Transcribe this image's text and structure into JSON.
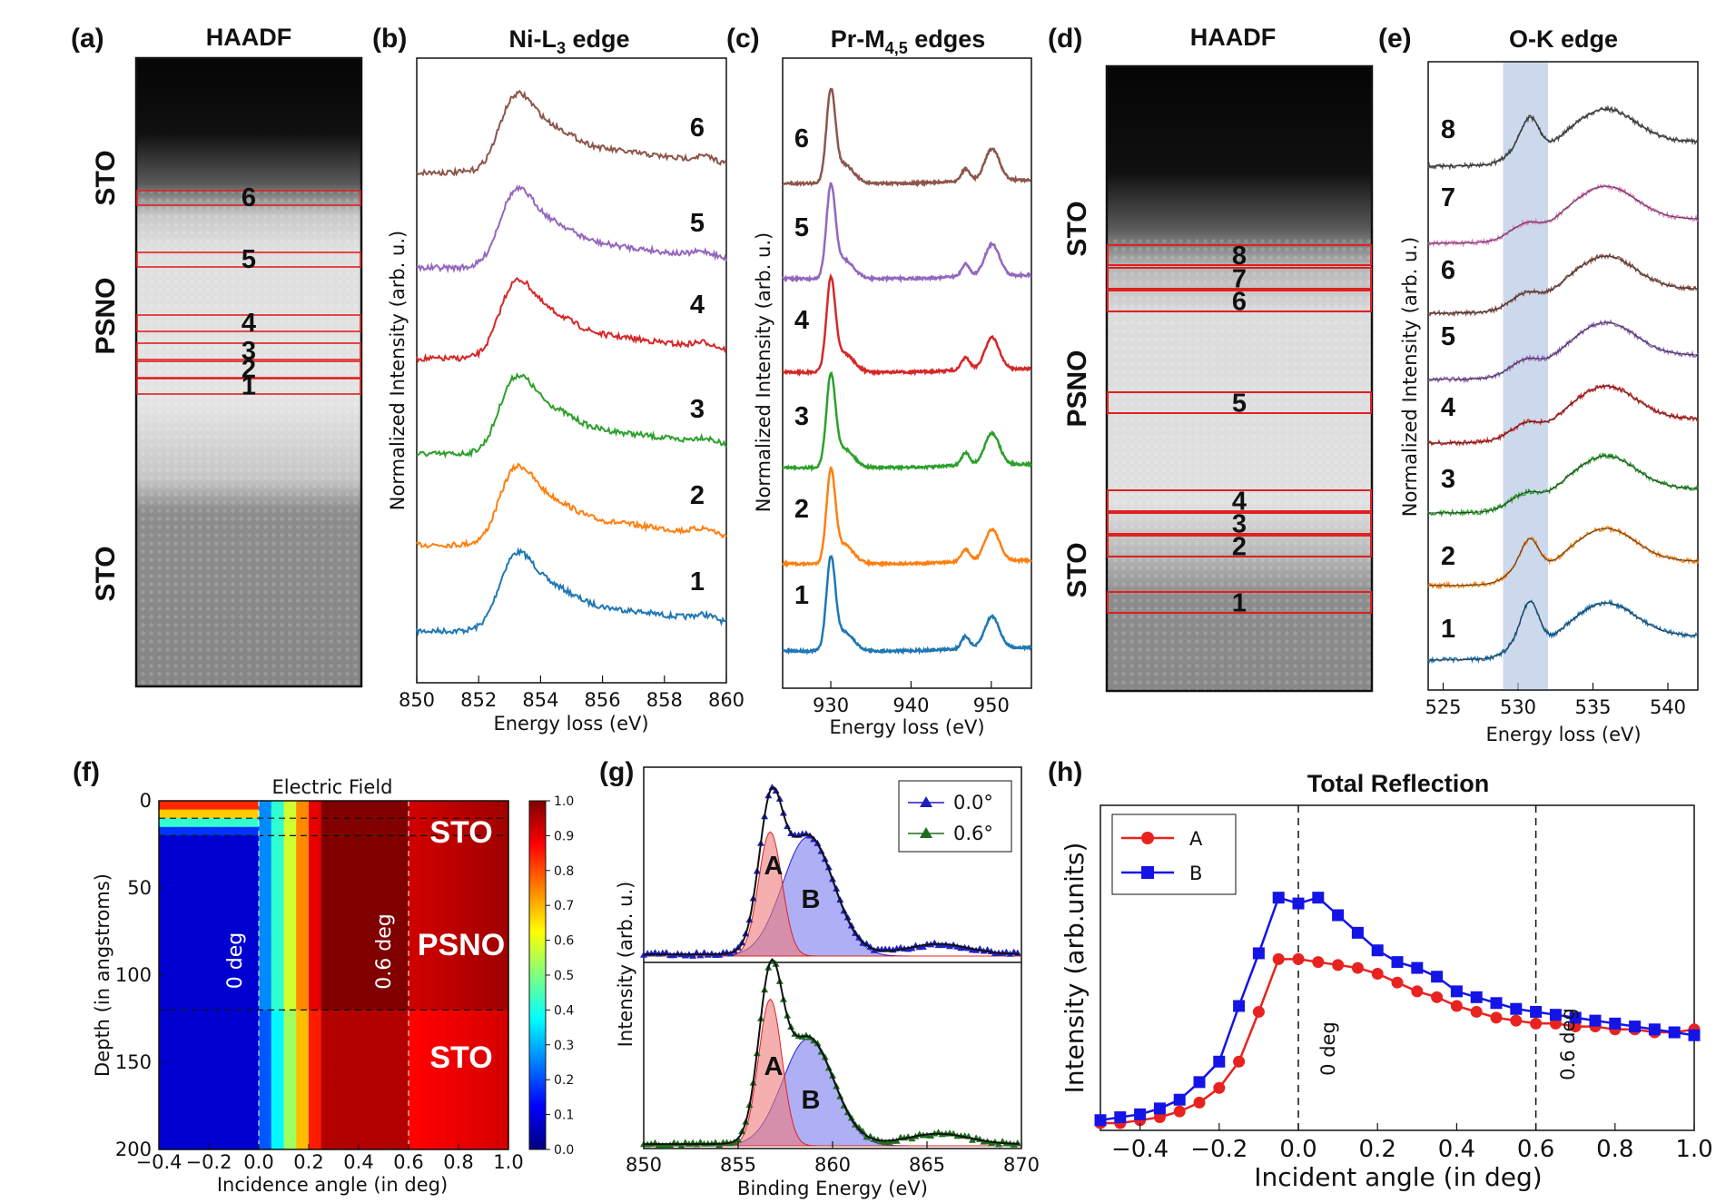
{
  "panels": {
    "a": {
      "label": "(a)",
      "title": "HAADF",
      "layers": [
        "STO",
        "PSNO",
        "STO"
      ],
      "boxes": [
        "6",
        "5",
        "4",
        "3",
        "2",
        "1"
      ]
    },
    "b": {
      "label": "(b)",
      "title": "Ni-L",
      "title_sub": "3",
      "title_tail": " edge",
      "ylabel": "Normalized Intensity (arb. u.)",
      "xlabel": "Energy loss (eV)"
    },
    "c": {
      "label": "(c)",
      "title": "Pr-M",
      "title_sub": "4,5",
      "title_tail": " edges",
      "ylabel": "Normalized Intensity (arb. u.)",
      "xlabel": "Energy loss (eV)"
    },
    "d": {
      "label": "(d)",
      "title": "HAADF",
      "layers": [
        "STO",
        "PSNO",
        "STO"
      ],
      "boxes": [
        "8",
        "7",
        "6",
        "5",
        "4",
        "3",
        "2",
        "1"
      ]
    },
    "e": {
      "label": "(e)",
      "title": "O-K edge",
      "ylabel": "Normalized Intensity (arb. u.)",
      "xlabel": "Energy loss (eV)"
    },
    "f": {
      "label": "(f)",
      "title": "Electric Field",
      "xlabel": "Incidence angle (in deg)",
      "ylabel": "Depth (in angstroms)",
      "ann0": "0 deg",
      "ann06": "0.6 deg",
      "layers": [
        "STO",
        "PSNO",
        "STO"
      ]
    },
    "g": {
      "label": "(g)",
      "xlabel": "Binding Energy (eV)",
      "ylabel": "Intensity (arb. u.)",
      "peakA": "A",
      "peakB": "B",
      "peakA2": "A",
      "peakB2": "B",
      "legend": [
        "0.0°",
        "0.6°"
      ]
    },
    "h": {
      "label": "(h)",
      "title": "Total Reflection",
      "xlabel": "Incident angle (in deg)",
      "ylabel": "Intensity (arb.units)",
      "ann0": "0 deg",
      "ann06": "0.6 deg",
      "legend": [
        "A",
        "B"
      ]
    }
  },
  "colors": {
    "s1": "#1f77b4",
    "s2": "#ff7f0e",
    "s3": "#2ca02c",
    "s4": "#d62728",
    "s5": "#9467bd",
    "s6": "#8c564b",
    "s7": "#e377c2",
    "s8": "#555555",
    "box": "#e02020",
    "red": "#e8231f",
    "blue": "#1414e6"
  },
  "chart_data": [
    {
      "id": "b",
      "type": "line",
      "title": "Ni-L3 edge",
      "xlabel": "Energy loss (eV)",
      "ylabel": "Normalized Intensity (arb. u.)",
      "xlim": [
        850,
        860
      ],
      "xticks": [
        "850",
        "852",
        "854",
        "856",
        "858",
        "860"
      ],
      "peak": 853.2,
      "series": [
        {
          "name": "1"
        },
        {
          "name": "2"
        },
        {
          "name": "3"
        },
        {
          "name": "4"
        },
        {
          "name": "5"
        },
        {
          "name": "6"
        }
      ]
    },
    {
      "id": "c",
      "type": "line",
      "title": "Pr-M4,5 edges",
      "xlabel": "Energy loss (eV)",
      "ylabel": "Normalized Intensity (arb. u.)",
      "xlim": [
        924,
        955
      ],
      "xticks": [
        "930",
        "940",
        "950"
      ],
      "peaks": [
        930,
        947,
        950
      ],
      "series": [
        {
          "name": "1"
        },
        {
          "name": "2"
        },
        {
          "name": "3"
        },
        {
          "name": "4"
        },
        {
          "name": "5"
        },
        {
          "name": "6"
        }
      ]
    },
    {
      "id": "e",
      "type": "line",
      "title": "O-K edge",
      "xlabel": "Energy loss (eV)",
      "ylabel": "Normalized Intensity (arb. u.)",
      "xlim": [
        524,
        542
      ],
      "xticks": [
        "525",
        "530",
        "535",
        "540"
      ],
      "highlight": [
        529,
        532
      ],
      "series": [
        {
          "name": "1"
        },
        {
          "name": "2"
        },
        {
          "name": "3"
        },
        {
          "name": "4"
        },
        {
          "name": "5"
        },
        {
          "name": "6"
        },
        {
          "name": "7"
        },
        {
          "name": "8"
        }
      ]
    },
    {
      "id": "f",
      "type": "heatmap",
      "title": "Electric Field",
      "xlabel": "Incidence angle (in deg)",
      "ylabel": "Depth (in angstroms)",
      "xlim": [
        -0.4,
        1.0
      ],
      "ylim": [
        0,
        200
      ],
      "xticks": [
        "−0.4",
        "−0.2",
        "0.0",
        "0.2",
        "0.4",
        "0.6",
        "0.8",
        "1.0"
      ],
      "yticks": [
        "0",
        "50",
        "100",
        "150",
        "200"
      ],
      "colorbar": [
        "0.0",
        "0.1",
        "0.2",
        "0.3",
        "0.4",
        "0.5",
        "0.6",
        "0.7",
        "0.8",
        "0.9",
        "1.0"
      ],
      "interfaces": [
        10,
        20,
        120
      ]
    },
    {
      "id": "g",
      "type": "area",
      "xlabel": "Binding Energy (eV)",
      "ylabel": "Intensity (arb. u.)",
      "xlim": [
        850,
        870
      ],
      "xticks": [
        "850",
        "855",
        "860",
        "865",
        "870"
      ],
      "components": [
        {
          "name": "A",
          "center": 856.7
        },
        {
          "name": "B",
          "center": 858.7
        }
      ],
      "series": [
        {
          "name": "0.0°"
        },
        {
          "name": "0.6°"
        }
      ]
    },
    {
      "id": "h",
      "type": "line",
      "title": "Total Reflection",
      "xlabel": "Incident angle (in deg)",
      "ylabel": "Intensity (arb.units)",
      "xlim": [
        -0.5,
        1.0
      ],
      "xticks": [
        "−0.4",
        "−0.2",
        "0.0",
        "0.2",
        "0.4",
        "0.6",
        "0.8",
        "1.0"
      ],
      "x": [
        -0.5,
        -0.45,
        -0.4,
        -0.35,
        -0.3,
        -0.25,
        -0.2,
        -0.15,
        -0.1,
        -0.05,
        0.0,
        0.05,
        0.1,
        0.15,
        0.2,
        0.25,
        0.3,
        0.35,
        0.4,
        0.45,
        0.5,
        0.55,
        0.6,
        0.65,
        0.7,
        0.75,
        0.8,
        0.85,
        0.9,
        0.95,
        1.0
      ],
      "series": [
        {
          "name": "A",
          "values": [
            0.0,
            0.0,
            0.01,
            0.02,
            0.04,
            0.07,
            0.12,
            0.21,
            0.38,
            0.56,
            0.56,
            0.55,
            0.54,
            0.53,
            0.51,
            0.48,
            0.45,
            0.43,
            0.4,
            0.38,
            0.36,
            0.35,
            0.34,
            0.34,
            0.33,
            0.33,
            0.32,
            0.32,
            0.31,
            0.31,
            0.32
          ]
        },
        {
          "name": "B",
          "values": [
            0.01,
            0.02,
            0.03,
            0.05,
            0.08,
            0.14,
            0.21,
            0.4,
            0.58,
            0.77,
            0.75,
            0.77,
            0.71,
            0.65,
            0.59,
            0.55,
            0.53,
            0.5,
            0.45,
            0.43,
            0.41,
            0.39,
            0.38,
            0.37,
            0.36,
            0.35,
            0.34,
            0.33,
            0.32,
            0.31,
            0.3
          ]
        }
      ]
    }
  ]
}
